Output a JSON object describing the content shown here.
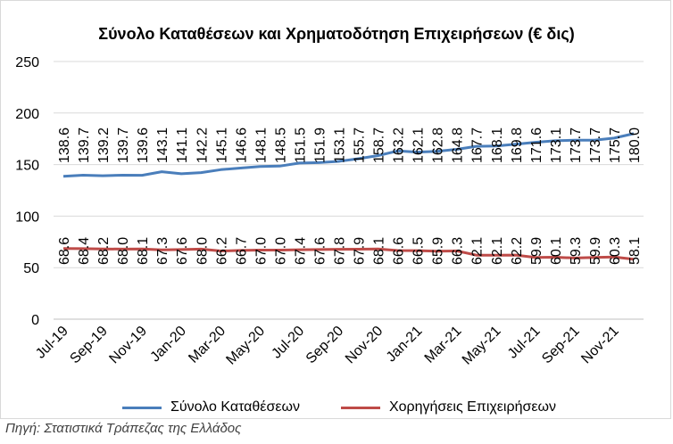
{
  "chart_data": {
    "type": "line",
    "title": "Σύνολο Καταθέσεων και Χρηματοδότηση Επιχειρήσεων (€ δις)",
    "ylim": [
      0,
      250
    ],
    "yticks": [
      0,
      50,
      100,
      150,
      200,
      250
    ],
    "x": [
      "Jul-19",
      "Aug-19",
      "Sep-19",
      "Oct-19",
      "Nov-19",
      "Dec-19",
      "Jan-20",
      "Feb-20",
      "Mar-20",
      "Apr-20",
      "May-20",
      "Jun-20",
      "Jul-20",
      "Aug-20",
      "Sep-20",
      "Oct-20",
      "Nov-20",
      "Dec-20",
      "Jan-21",
      "Feb-21",
      "Mar-21",
      "Apr-21",
      "May-21",
      "Jun-21",
      "Jul-21",
      "Aug-21",
      "Sep-21",
      "Oct-21",
      "Nov-21",
      "Dec-21"
    ],
    "xtick_labels": [
      "Jul-19",
      "Sep-19",
      "Nov-19",
      "Jan-20",
      "Mar-20",
      "May-20",
      "Jul-20",
      "Sep-20",
      "Nov-20",
      "Jan-21",
      "Mar-21",
      "May-21",
      "Jul-21",
      "Sep-21",
      "Nov-21"
    ],
    "grid": true,
    "legend_position": "bottom",
    "series": [
      {
        "name": "Σύνολο Καταθέσεων",
        "color": "#4a7ebb",
        "values": [
          138.6,
          139.7,
          139.2,
          139.7,
          139.6,
          143.1,
          141.1,
          142.2,
          145.1,
          146.6,
          148.1,
          148.5,
          151.5,
          151.9,
          153.1,
          155.7,
          158.7,
          163.2,
          162.1,
          162.8,
          164.8,
          167.7,
          168.1,
          169.8,
          171.6,
          173.1,
          173.7,
          173.7,
          175.7,
          180.0
        ],
        "labels": [
          "138.6",
          "139.7",
          "139.2",
          "139.7",
          "139.6",
          "143.1",
          "141.1",
          "142.2",
          "145.1",
          "146.6",
          "148.1",
          "148.5",
          "151.5",
          "151.9",
          "153.1",
          "155.7",
          "158.7",
          "163.2",
          "162.1",
          "162.8",
          "164.8",
          "167.7",
          "168.1",
          "169.8",
          "171.6",
          "173.1",
          "173.7",
          "173.7",
          "175.7",
          "180.0"
        ]
      },
      {
        "name": "Χορηγήσεις Επιχειρήσεων",
        "color": "#be4b48",
        "values": [
          68.6,
          68.4,
          68.2,
          68.0,
          68.1,
          67.3,
          67.6,
          68.0,
          66.2,
          66.7,
          67.0,
          67.0,
          67.4,
          67.6,
          67.8,
          67.9,
          68.1,
          66.6,
          66.5,
          65.9,
          66.3,
          62.1,
          62.1,
          62.2,
          59.9,
          60.1,
          59.3,
          59.9,
          60.3,
          58.1
        ],
        "labels": [
          "68.6",
          "68.4",
          "68.2",
          "68.0",
          "68.1",
          "67.3",
          "67.6",
          "68.0",
          "66.2",
          "66.7",
          "67.0",
          "67.0",
          "67.4",
          "67.6",
          "67.8",
          "67.9",
          "68.1",
          "66.6",
          "66.5",
          "65.9",
          "66.3",
          "62.1",
          "62.1",
          "62.2",
          "59.9",
          "60.1",
          "59.3",
          "59.9",
          "60.3",
          "58.1"
        ]
      }
    ]
  },
  "source": "Πηγή: Στατιστικά Τράπεζας της Ελλάδος"
}
